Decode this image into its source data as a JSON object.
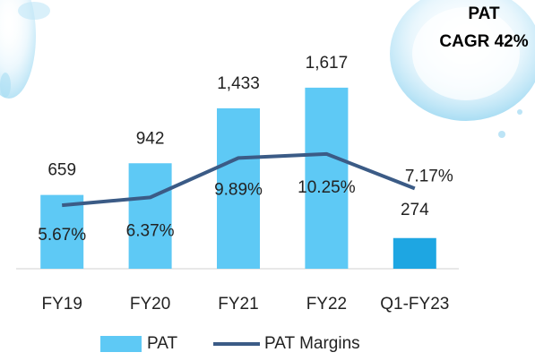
{
  "chart_data": {
    "type": "bar-line",
    "annotation": [
      "PAT",
      "CAGR 42%"
    ],
    "categories": [
      "FY19",
      "FY20",
      "FY21",
      "FY22",
      "Q1-FY23"
    ],
    "series": [
      {
        "name": "PAT",
        "type": "bar",
        "colors": [
          "#5ec9f5",
          "#5ec9f5",
          "#5ec9f5",
          "#5ec9f5",
          "#1ea6e2"
        ],
        "values": [
          659,
          942,
          1433,
          1617,
          274
        ],
        "value_labels": [
          "659",
          "942",
          "1,433",
          "1,617",
          "274"
        ]
      },
      {
        "name": "PAT Margins",
        "type": "line",
        "color": "#3b5b86",
        "axis": "y2",
        "values": [
          5.67,
          6.37,
          9.89,
          10.25,
          7.17
        ],
        "value_labels": [
          "5.67%",
          "6.37%",
          "9.89%",
          "10.25%",
          "7.17%"
        ]
      }
    ],
    "ylim": [
      0,
      2000
    ],
    "y2lim": [
      0,
      20
    ],
    "legend": "bottom"
  }
}
